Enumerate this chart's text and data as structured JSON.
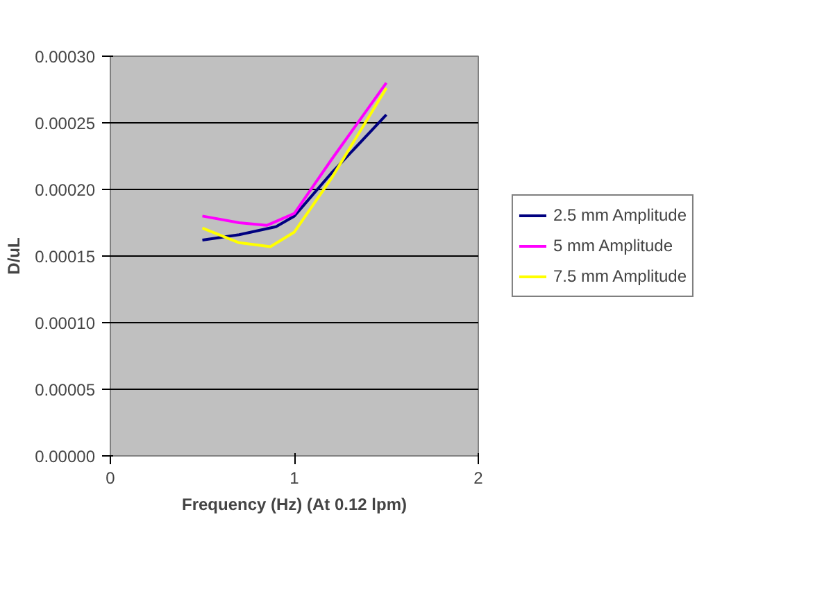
{
  "chart_data": {
    "type": "line",
    "xlabel": "Frequency (Hz) (At 0.12 lpm)",
    "ylabel": "D/uL",
    "xlim": [
      0,
      2
    ],
    "xticks": [
      0,
      1,
      2
    ],
    "ylim": [
      0,
      0.0003
    ],
    "yticks": [
      {
        "value": 0,
        "label": "0.00000"
      },
      {
        "value": 5e-05,
        "label": "0.00005"
      },
      {
        "value": 0.0001,
        "label": "0.00010"
      },
      {
        "value": 0.00015,
        "label": "0.00015"
      },
      {
        "value": 0.0002,
        "label": "0.00020"
      },
      {
        "value": 0.00025,
        "label": "0.00025"
      },
      {
        "value": 0.0003,
        "label": "0.00030"
      }
    ],
    "grid": "y",
    "legend": "right",
    "marker": "none",
    "line_style": "solid",
    "series": [
      {
        "name": "2.5 mm Amplitude",
        "color": "#000080",
        "x": [
          0.5,
          0.7,
          0.9,
          1.0,
          1.2,
          1.5
        ],
        "values": [
          0.000162,
          0.000166,
          0.000172,
          0.00018,
          0.000212,
          0.000256
        ]
      },
      {
        "name": "5 mm Amplitude",
        "color": "#ff00ff",
        "x": [
          0.5,
          0.7,
          0.85,
          1.0,
          1.2,
          1.5
        ],
        "values": [
          0.00018,
          0.000175,
          0.000173,
          0.000182,
          0.000222,
          0.00028
        ]
      },
      {
        "name": "7.5 mm Amplitude",
        "color": "#ffff00",
        "x": [
          0.5,
          0.7,
          0.87,
          1.0,
          1.2,
          1.5
        ],
        "values": [
          0.000171,
          0.00016,
          0.000157,
          0.000168,
          0.000208,
          0.000276
        ]
      }
    ]
  }
}
